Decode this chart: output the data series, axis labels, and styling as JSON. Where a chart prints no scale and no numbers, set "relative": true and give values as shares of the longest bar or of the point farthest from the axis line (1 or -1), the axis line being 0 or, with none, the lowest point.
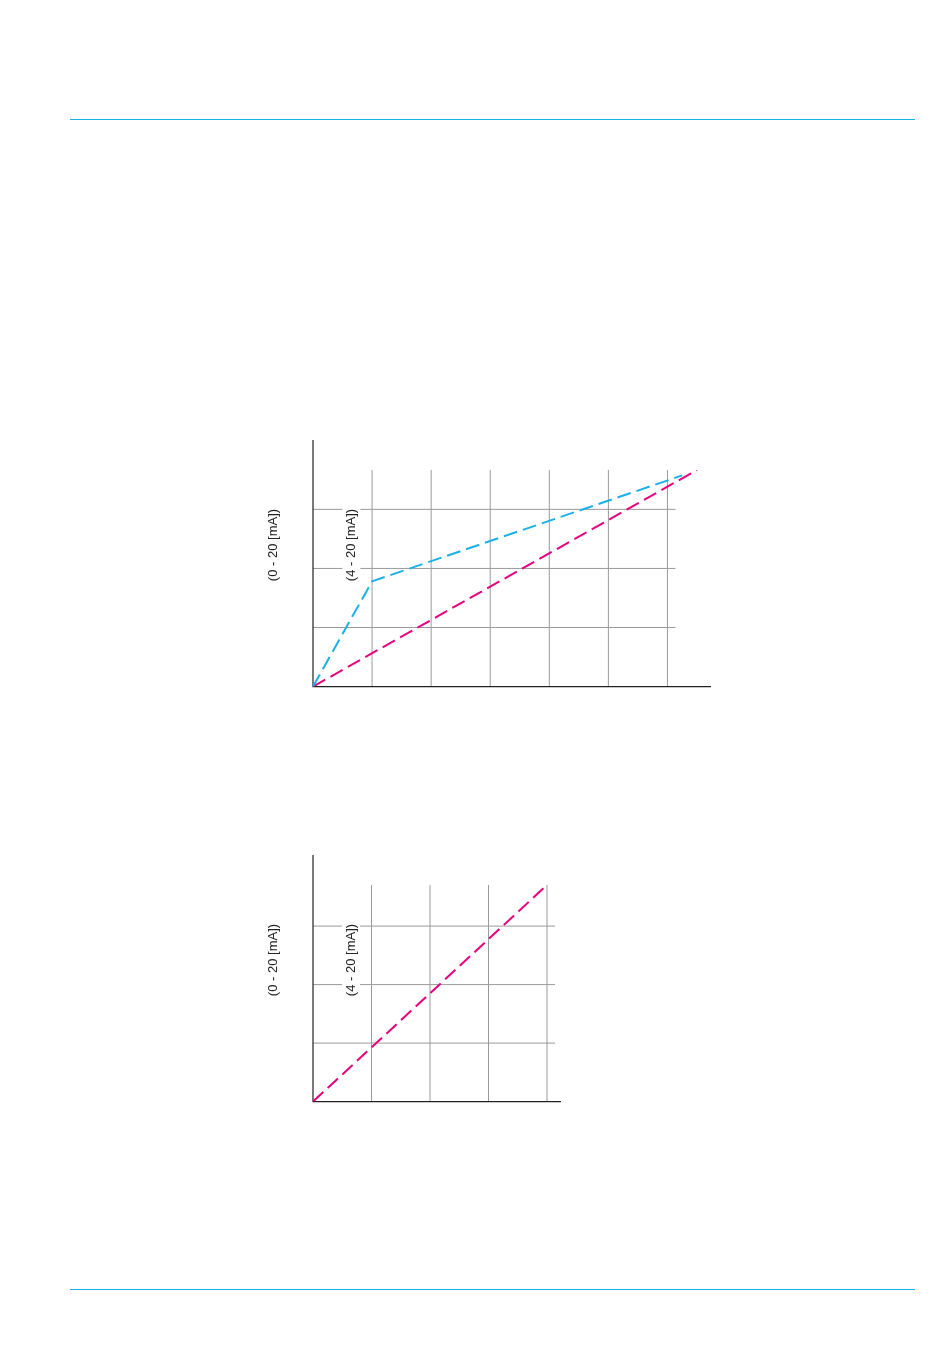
{
  "chart_data": [
    {
      "type": "line",
      "ylabel": "(0 - 20 [mA])",
      "annotations": [
        "(4 - 20 [mA])"
      ],
      "relative": true,
      "grid": true,
      "legend": false,
      "line_style": "dashed",
      "marker": "none",
      "categories": [
        null,
        null,
        null,
        null,
        null,
        null,
        null,
        null,
        null,
        null,
        null,
        null,
        null,
        null,
        null,
        null,
        null,
        null,
        null,
        null,
        null,
        null,
        null,
        null,
        null,
        null,
        null
      ],
      "series": [
        {
          "color": "#1ab0e8",
          "values": [
            0,
            null,
            null,
            null,
            0.486,
            null,
            null,
            null,
            null,
            null,
            null,
            null,
            null,
            null,
            null,
            null,
            null,
            null,
            null,
            null,
            null,
            null,
            null,
            null,
            null,
            0.975,
            null
          ]
        },
        {
          "color": "#e6007e",
          "values": [
            0,
            null,
            null,
            null,
            null,
            null,
            null,
            null,
            null,
            null,
            null,
            null,
            null,
            null,
            null,
            null,
            null,
            null,
            null,
            null,
            null,
            null,
            null,
            null,
            null,
            null,
            1
          ]
        }
      ]
    },
    {
      "type": "line",
      "ylabel": "(0 - 20 [mA])",
      "annotations": [
        "(4 - 20 [mA])"
      ],
      "relative": true,
      "grid": true,
      "legend": false,
      "line_style": "dashed",
      "marker": "none",
      "categories": [
        null,
        null,
        null,
        null,
        null,
        null,
        null,
        null,
        null,
        null,
        null,
        null,
        null,
        null,
        null,
        null,
        null
      ],
      "series": [
        {
          "color": "#e6007e",
          "values": [
            0,
            null,
            null,
            null,
            null,
            null,
            null,
            null,
            null,
            null,
            null,
            null,
            null,
            null,
            null,
            null,
            1
          ]
        }
      ]
    }
  ]
}
